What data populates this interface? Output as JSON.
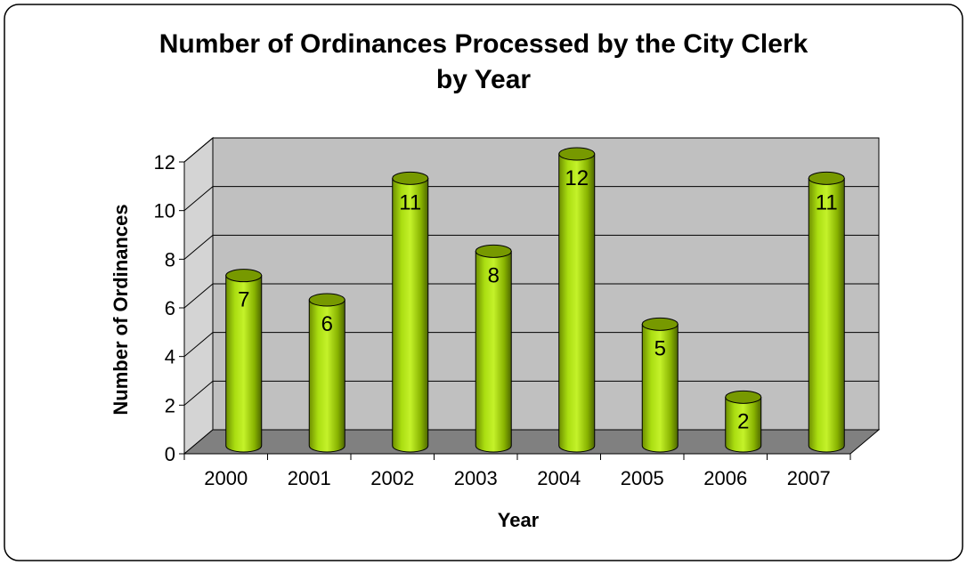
{
  "chart_data": {
    "type": "bar",
    "title_line1": "Number of Ordinances Processed by the City Clerk",
    "title_line2": "by Year",
    "xlabel": "Year",
    "ylabel": "Number of Ordinances",
    "categories": [
      "2000",
      "2001",
      "2002",
      "2003",
      "2004",
      "2005",
      "2006",
      "2007"
    ],
    "values": [
      7,
      6,
      11,
      8,
      12,
      5,
      2,
      11
    ],
    "data_labels": [
      "7",
      "6",
      "11",
      "8",
      "12",
      "5",
      "2",
      "11"
    ],
    "ylim": [
      0,
      12
    ],
    "yticks": [
      "0",
      "2",
      "4",
      "6",
      "8",
      "10",
      "12"
    ],
    "grid": true,
    "legend": "none",
    "style": "3d-cylinder",
    "colors": {
      "bar": "#99cc00",
      "bar_dark": "#5c7a00",
      "bar_light": "#ccff33",
      "wall": "#c0c0c0",
      "floor": "#808080",
      "frame": "#000000"
    }
  }
}
